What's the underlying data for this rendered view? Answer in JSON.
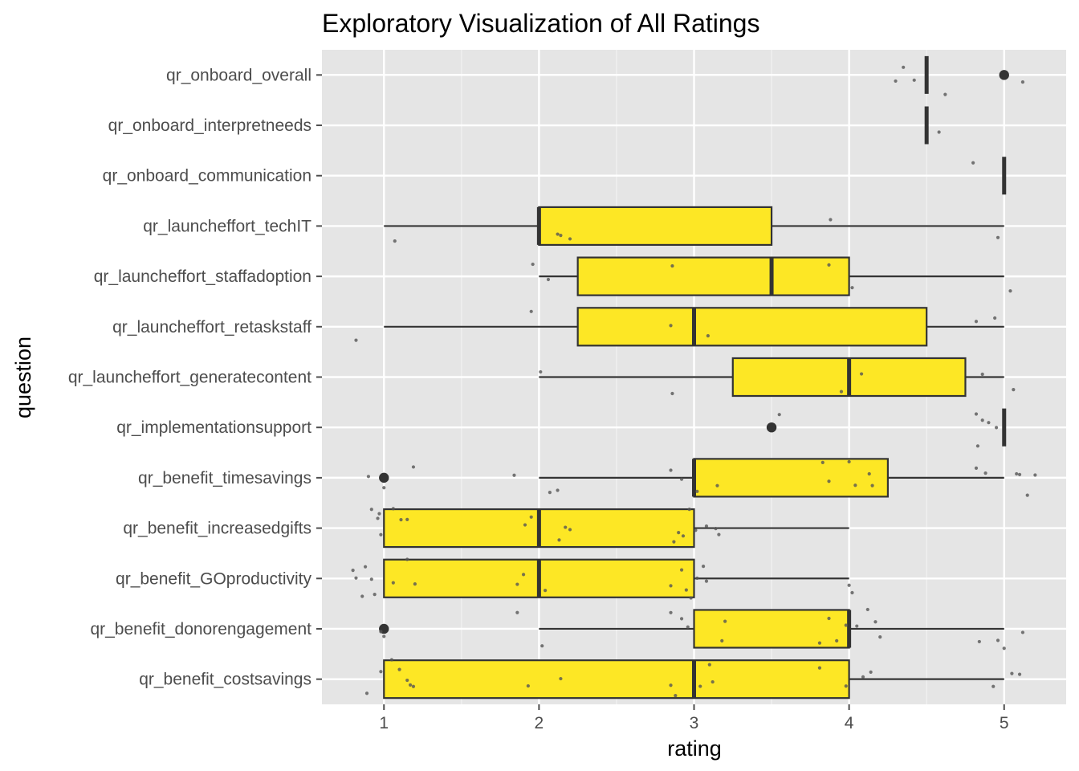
{
  "chart_data": {
    "type": "boxplot",
    "title": "Exploratory Visualization of All Ratings",
    "xlabel": "rating",
    "ylabel": "question",
    "xlim": [
      0.6,
      5.4
    ],
    "x_ticks": [
      1,
      2,
      3,
      4,
      5
    ],
    "grid": true,
    "legend": "none",
    "colors": {
      "panel": "#e5e5e5",
      "grid_major": "#ffffff",
      "grid_minor": "#f2f2f2",
      "box_fill": "#fde725",
      "box_stroke": "#333333",
      "points": "#555555",
      "tick": "#4d4d4d"
    },
    "categories": [
      "qr_onboard_overall",
      "qr_onboard_interpretneeds",
      "qr_onboard_communication",
      "qr_launcheffort_techIT",
      "qr_launcheffort_staffadoption",
      "qr_launcheffort_retaskstaff",
      "qr_launcheffort_generatecontent",
      "qr_implementationsupport",
      "qr_benefit_timesavings",
      "qr_benefit_increasedgifts",
      "qr_benefit_GOproductivity",
      "qr_benefit_donorengagement",
      "qr_benefit_costsavings"
    ],
    "boxes": [
      {
        "q1": 4.5,
        "median": 4.5,
        "q3": 4.5,
        "whisker_low": 4.5,
        "whisker_high": 4.5,
        "outliers": [
          5
        ],
        "points": [
          4.3,
          4.35,
          4.42,
          4.62,
          5.12
        ]
      },
      {
        "q1": 4.5,
        "median": 4.5,
        "q3": 4.5,
        "whisker_low": 4.5,
        "whisker_high": 4.5,
        "outliers": [],
        "points": [
          4.58
        ]
      },
      {
        "q1": 5,
        "median": 5,
        "q3": 5,
        "whisker_low": 5,
        "whisker_high": 5,
        "outliers": [],
        "points": [
          4.8
        ]
      },
      {
        "q1": 2,
        "median": 2,
        "q3": 3.5,
        "whisker_low": 1,
        "whisker_high": 5,
        "outliers": [],
        "points": [
          1.07,
          2.12,
          2.2,
          2.14,
          3.88,
          4.96
        ]
      },
      {
        "q1": 2.25,
        "median": 3.5,
        "q3": 4,
        "whisker_low": 2,
        "whisker_high": 5,
        "outliers": [],
        "points": [
          1.96,
          2.06,
          2.86,
          3.87,
          4.02,
          5.04
        ]
      },
      {
        "q1": 2.25,
        "median": 3,
        "q3": 4.5,
        "whisker_low": 1,
        "whisker_high": 5,
        "outliers": [],
        "points": [
          0.82,
          1.95,
          2.85,
          3.09,
          4.82,
          4.94
        ]
      },
      {
        "q1": 3.25,
        "median": 4,
        "q3": 4.75,
        "whisker_low": 2,
        "whisker_high": 5,
        "outliers": [],
        "points": [
          2.01,
          2.86,
          3.95,
          4.08,
          4.86,
          5.06
        ]
      },
      {
        "q1": 5,
        "median": 5,
        "q3": 5,
        "whisker_low": 5,
        "whisker_high": 5,
        "outliers": [
          3.5
        ],
        "points": [
          3.55,
          4.82,
          4.86,
          4.9,
          4.95,
          4.83
        ]
      },
      {
        "q1": 3,
        "median": 3,
        "q3": 4.25,
        "whisker_low": 2,
        "whisker_high": 5,
        "outliers": [
          1
        ],
        "points": [
          0.9,
          1.0,
          1.19,
          1.84,
          2.07,
          2.12,
          2.85,
          2.92,
          3.02,
          3.15,
          3.83,
          3.87,
          4.0,
          4.04,
          4.13,
          4.15,
          4.82,
          4.88,
          5.08,
          5.1,
          5.15,
          5.2
        ]
      },
      {
        "q1": 1,
        "median": 2,
        "q3": 3,
        "whisker_low": 1,
        "whisker_high": 4,
        "outliers": [],
        "points": [
          0.92,
          0.96,
          0.97,
          0.98,
          1.06,
          1.11,
          1.15,
          1.91,
          1.95,
          2.13,
          2.17,
          2.2,
          2.87,
          2.9,
          2.93,
          2.97,
          3.01,
          3.08,
          3.14,
          3.16
        ]
      },
      {
        "q1": 1,
        "median": 2,
        "q3": 3,
        "whisker_low": 1,
        "whisker_high": 4,
        "outliers": [],
        "points": [
          0.8,
          0.82,
          0.86,
          0.88,
          0.92,
          0.94,
          1.06,
          1.15,
          1.2,
          1.86,
          1.9,
          2.04,
          2.85,
          2.92,
          2.95,
          2.98,
          3.02,
          3.06,
          3.08,
          4.0,
          4.02
        ]
      },
      {
        "q1": 3,
        "median": 4,
        "q3": 4,
        "whisker_low": 2,
        "whisker_high": 5,
        "outliers": [
          1
        ],
        "points": [
          0.98,
          1.0,
          1.86,
          2.02,
          2.85,
          2.92,
          2.96,
          3.18,
          3.2,
          3.81,
          3.87,
          3.92,
          3.98,
          4.05,
          4.12,
          4.17,
          4.2,
          4.84,
          4.96,
          5.0,
          5.12
        ]
      },
      {
        "q1": 1,
        "median": 3,
        "q3": 4,
        "whisker_low": 1,
        "whisker_high": 5,
        "outliers": [],
        "points": [
          0.89,
          0.98,
          1.05,
          1.1,
          1.15,
          1.17,
          1.19,
          1.93,
          2.14,
          2.85,
          2.88,
          3.04,
          3.1,
          3.12,
          3.81,
          3.98,
          4.09,
          4.14,
          4.93,
          5.05,
          5.1
        ]
      }
    ]
  }
}
